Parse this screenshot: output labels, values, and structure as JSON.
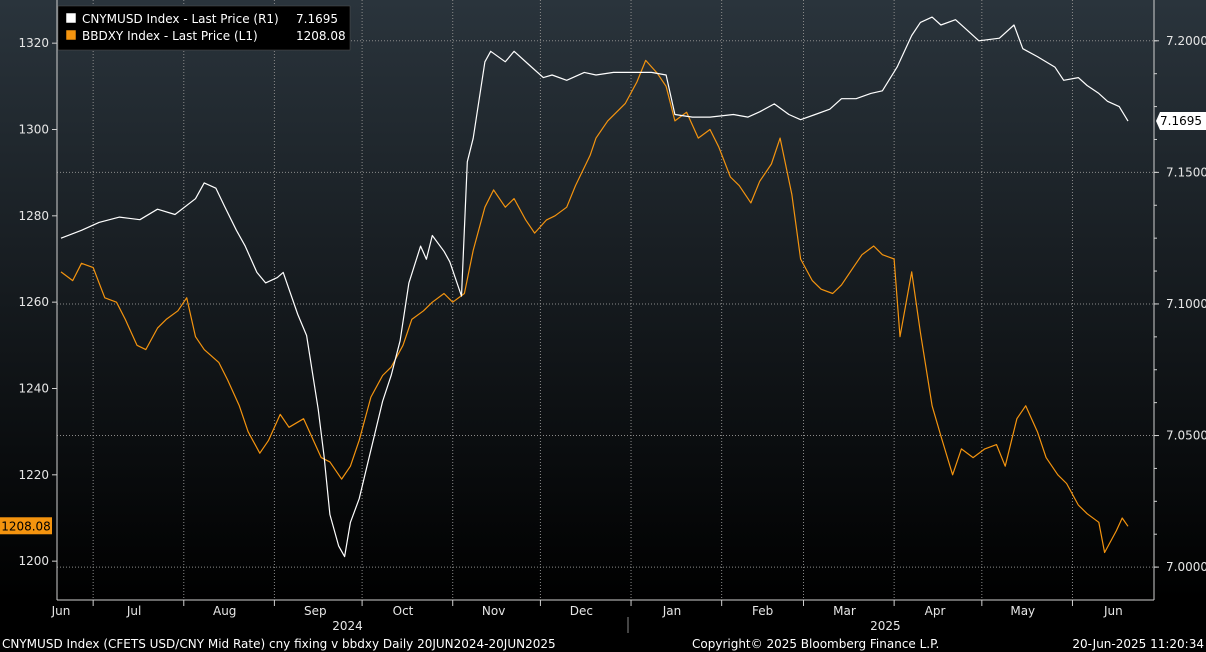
{
  "colors": {
    "background_top": "#2a343c",
    "background_bottom": "#000000",
    "grid": "#8a8a8a",
    "series_cny": "#ffffff",
    "series_bbdxy": "#f4940f"
  },
  "legend": {
    "cny_label": "CNYMUSD Index - Last Price (R1)",
    "cny_value": "7.1695",
    "bbdxy_label": "BBDXY Index - Last Price (L1)",
    "bbdxy_value": "1208.08"
  },
  "footer": {
    "left": "CNYMUSD Index (CFETS USD/CNY Mid Rate) cny fixing v bbdxy  Daily 20JUN2024-20JUN2025",
    "center": "Copyright© 2025 Bloomberg Finance L.P.",
    "right": "20-Jun-2025 11:20:34"
  },
  "chart_data": {
    "type": "line",
    "x_range": [
      "2024-06-20",
      "2025-06-20"
    ],
    "x_month_ticks": [
      {
        "label": "Jun",
        "date": "2024-06-20"
      },
      {
        "label": "Jul",
        "date": "2024-07-15"
      },
      {
        "label": "Aug",
        "date": "2024-08-15"
      },
      {
        "label": "Sep",
        "date": "2024-09-15"
      },
      {
        "label": "Oct",
        "date": "2024-10-15"
      },
      {
        "label": "Nov",
        "date": "2024-11-15"
      },
      {
        "label": "Dec",
        "date": "2024-12-15"
      },
      {
        "label": "Jan",
        "date": "2025-01-15"
      },
      {
        "label": "Feb",
        "date": "2025-02-15"
      },
      {
        "label": "Mar",
        "date": "2025-03-15"
      },
      {
        "label": "Apr",
        "date": "2025-04-15"
      },
      {
        "label": "May",
        "date": "2025-05-15"
      },
      {
        "label": "Jun",
        "date": "2025-06-15"
      }
    ],
    "x_month_boundaries": [
      "2024-07-01",
      "2024-08-01",
      "2024-09-01",
      "2024-10-01",
      "2024-11-01",
      "2024-12-01",
      "2025-01-01",
      "2025-02-01",
      "2025-03-01",
      "2025-04-01",
      "2025-05-01",
      "2025-06-01"
    ],
    "year_labels": [
      {
        "label": "2024",
        "date": "2024-09-26"
      },
      {
        "label": "2025",
        "date": "2025-03-29"
      }
    ],
    "y_left": {
      "min": 1191,
      "max": 1330,
      "ticks": [
        1200,
        1220,
        1240,
        1260,
        1280,
        1300,
        1320
      ]
    },
    "y_right": {
      "min": 6.9875,
      "max": 7.2155,
      "ticks": [
        "7.0000",
        "7.0500",
        "7.1000",
        "7.1500",
        "7.2000"
      ]
    },
    "grid": true,
    "legend_position": "top-left",
    "last_value_labels": {
      "left": "1208.08",
      "right": "7.1695"
    },
    "series": [
      {
        "name": "CNYMUSD Index - Last Price (R1)",
        "axis": "right",
        "color": "#ffffff",
        "points": [
          [
            "2024-06-20",
            7.125
          ],
          [
            "2024-06-27",
            7.128
          ],
          [
            "2024-07-03",
            7.131
          ],
          [
            "2024-07-10",
            7.133
          ],
          [
            "2024-07-17",
            7.132
          ],
          [
            "2024-07-23",
            7.136
          ],
          [
            "2024-07-29",
            7.134
          ],
          [
            "2024-08-05",
            7.14
          ],
          [
            "2024-08-08",
            7.146
          ],
          [
            "2024-08-12",
            7.144
          ],
          [
            "2024-08-15",
            7.137
          ],
          [
            "2024-08-19",
            7.128
          ],
          [
            "2024-08-22",
            7.122
          ],
          [
            "2024-08-26",
            7.112
          ],
          [
            "2024-08-29",
            7.108
          ],
          [
            "2024-09-02",
            7.11
          ],
          [
            "2024-09-04",
            7.112
          ],
          [
            "2024-09-09",
            7.096
          ],
          [
            "2024-09-12",
            7.088
          ],
          [
            "2024-09-16",
            7.06
          ],
          [
            "2024-09-18",
            7.042
          ],
          [
            "2024-09-20",
            7.02
          ],
          [
            "2024-09-23",
            7.008
          ],
          [
            "2024-09-25",
            7.004
          ],
          [
            "2024-09-27",
            7.017
          ],
          [
            "2024-09-30",
            7.026
          ],
          [
            "2024-10-08",
            7.063
          ],
          [
            "2024-10-11",
            7.073
          ],
          [
            "2024-10-14",
            7.086
          ],
          [
            "2024-10-17",
            7.108
          ],
          [
            "2024-10-21",
            7.122
          ],
          [
            "2024-10-23",
            7.117
          ],
          [
            "2024-10-25",
            7.126
          ],
          [
            "2024-10-29",
            7.12
          ],
          [
            "2024-10-31",
            7.116
          ],
          [
            "2024-11-04",
            7.103
          ],
          [
            "2024-11-06",
            7.154
          ],
          [
            "2024-11-08",
            7.163
          ],
          [
            "2024-11-12",
            7.192
          ],
          [
            "2024-11-14",
            7.196
          ],
          [
            "2024-11-19",
            7.192
          ],
          [
            "2024-11-22",
            7.196
          ],
          [
            "2024-11-27",
            7.191
          ],
          [
            "2024-12-02",
            7.186
          ],
          [
            "2024-12-05",
            7.187
          ],
          [
            "2024-12-10",
            7.185
          ],
          [
            "2024-12-16",
            7.188
          ],
          [
            "2024-12-20",
            7.187
          ],
          [
            "2024-12-26",
            7.188
          ],
          [
            "2025-01-02",
            7.188
          ],
          [
            "2025-01-08",
            7.188
          ],
          [
            "2025-01-13",
            7.187
          ],
          [
            "2025-01-16",
            7.172
          ],
          [
            "2025-01-22",
            7.171
          ],
          [
            "2025-01-28",
            7.171
          ],
          [
            "2025-02-05",
            7.172
          ],
          [
            "2025-02-10",
            7.171
          ],
          [
            "2025-02-14",
            7.173
          ],
          [
            "2025-02-19",
            7.176
          ],
          [
            "2025-02-24",
            7.172
          ],
          [
            "2025-02-28",
            7.17
          ],
          [
            "2025-03-05",
            7.172
          ],
          [
            "2025-03-10",
            7.174
          ],
          [
            "2025-03-14",
            7.178
          ],
          [
            "2025-03-19",
            7.178
          ],
          [
            "2025-03-24",
            7.18
          ],
          [
            "2025-03-28",
            7.181
          ],
          [
            "2025-04-02",
            7.19
          ],
          [
            "2025-04-07",
            7.202
          ],
          [
            "2025-04-10",
            7.207
          ],
          [
            "2025-04-14",
            7.209
          ],
          [
            "2025-04-17",
            7.206
          ],
          [
            "2025-04-22",
            7.208
          ],
          [
            "2025-04-25",
            7.205
          ],
          [
            "2025-04-30",
            7.2
          ],
          [
            "2025-05-07",
            7.201
          ],
          [
            "2025-05-12",
            7.206
          ],
          [
            "2025-05-15",
            7.197
          ],
          [
            "2025-05-20",
            7.194
          ],
          [
            "2025-05-26",
            7.19
          ],
          [
            "2025-05-29",
            7.185
          ],
          [
            "2025-06-03",
            7.186
          ],
          [
            "2025-06-06",
            7.183
          ],
          [
            "2025-06-10",
            7.18
          ],
          [
            "2025-06-13",
            7.177
          ],
          [
            "2025-06-17",
            7.175
          ],
          [
            "2025-06-20",
            7.1695
          ]
        ]
      },
      {
        "name": "BBDXY Index - Last Price (L1)",
        "axis": "left",
        "color": "#f4940f",
        "points": [
          [
            "2024-06-20",
            1267
          ],
          [
            "2024-06-24",
            1265
          ],
          [
            "2024-06-27",
            1269
          ],
          [
            "2024-07-01",
            1268
          ],
          [
            "2024-07-05",
            1261
          ],
          [
            "2024-07-09",
            1260
          ],
          [
            "2024-07-12",
            1256
          ],
          [
            "2024-07-16",
            1250
          ],
          [
            "2024-07-19",
            1249
          ],
          [
            "2024-07-23",
            1254
          ],
          [
            "2024-07-26",
            1256
          ],
          [
            "2024-07-30",
            1258
          ],
          [
            "2024-08-02",
            1261
          ],
          [
            "2024-08-05",
            1252
          ],
          [
            "2024-08-08",
            1249
          ],
          [
            "2024-08-13",
            1246
          ],
          [
            "2024-08-16",
            1242
          ],
          [
            "2024-08-20",
            1236
          ],
          [
            "2024-08-23",
            1230
          ],
          [
            "2024-08-27",
            1225
          ],
          [
            "2024-08-30",
            1228
          ],
          [
            "2024-09-03",
            1234
          ],
          [
            "2024-09-06",
            1231
          ],
          [
            "2024-09-11",
            1233
          ],
          [
            "2024-09-13",
            1230
          ],
          [
            "2024-09-17",
            1224
          ],
          [
            "2024-09-20",
            1223
          ],
          [
            "2024-09-24",
            1219
          ],
          [
            "2024-09-27",
            1222
          ],
          [
            "2024-09-30",
            1228
          ],
          [
            "2024-10-04",
            1238
          ],
          [
            "2024-10-08",
            1243
          ],
          [
            "2024-10-11",
            1245
          ],
          [
            "2024-10-15",
            1250
          ],
          [
            "2024-10-18",
            1256
          ],
          [
            "2024-10-22",
            1258
          ],
          [
            "2024-10-25",
            1260
          ],
          [
            "2024-10-29",
            1262
          ],
          [
            "2024-11-01",
            1260
          ],
          [
            "2024-11-05",
            1262
          ],
          [
            "2024-11-08",
            1272
          ],
          [
            "2024-11-12",
            1282
          ],
          [
            "2024-11-15",
            1286
          ],
          [
            "2024-11-19",
            1282
          ],
          [
            "2024-11-22",
            1284
          ],
          [
            "2024-11-26",
            1279
          ],
          [
            "2024-11-29",
            1276
          ],
          [
            "2024-12-03",
            1279
          ],
          [
            "2024-12-06",
            1280
          ],
          [
            "2024-12-10",
            1282
          ],
          [
            "2024-12-13",
            1287
          ],
          [
            "2024-12-18",
            1294
          ],
          [
            "2024-12-20",
            1298
          ],
          [
            "2024-12-24",
            1302
          ],
          [
            "2024-12-30",
            1306
          ],
          [
            "2025-01-03",
            1311
          ],
          [
            "2025-01-06",
            1316
          ],
          [
            "2025-01-10",
            1313
          ],
          [
            "2025-01-13",
            1310
          ],
          [
            "2025-01-16",
            1302
          ],
          [
            "2025-01-20",
            1304
          ],
          [
            "2025-01-24",
            1298
          ],
          [
            "2025-01-28",
            1300
          ],
          [
            "2025-01-31",
            1296
          ],
          [
            "2025-02-04",
            1289
          ],
          [
            "2025-02-07",
            1287
          ],
          [
            "2025-02-11",
            1283
          ],
          [
            "2025-02-14",
            1288
          ],
          [
            "2025-02-18",
            1292
          ],
          [
            "2025-02-21",
            1298
          ],
          [
            "2025-02-25",
            1285
          ],
          [
            "2025-02-28",
            1270
          ],
          [
            "2025-03-04",
            1265
          ],
          [
            "2025-03-07",
            1263
          ],
          [
            "2025-03-11",
            1262
          ],
          [
            "2025-03-14",
            1264
          ],
          [
            "2025-03-18",
            1268
          ],
          [
            "2025-03-21",
            1271
          ],
          [
            "2025-03-25",
            1273
          ],
          [
            "2025-03-28",
            1271
          ],
          [
            "2025-04-01",
            1270
          ],
          [
            "2025-04-03",
            1252
          ],
          [
            "2025-04-07",
            1267
          ],
          [
            "2025-04-10",
            1253
          ],
          [
            "2025-04-14",
            1236
          ],
          [
            "2025-04-17",
            1229
          ],
          [
            "2025-04-21",
            1220
          ],
          [
            "2025-04-24",
            1226
          ],
          [
            "2025-04-28",
            1224
          ],
          [
            "2025-05-02",
            1226
          ],
          [
            "2025-05-06",
            1227
          ],
          [
            "2025-05-09",
            1222
          ],
          [
            "2025-05-13",
            1233
          ],
          [
            "2025-05-16",
            1236
          ],
          [
            "2025-05-20",
            1230
          ],
          [
            "2025-05-23",
            1224
          ],
          [
            "2025-05-27",
            1220
          ],
          [
            "2025-05-30",
            1218
          ],
          [
            "2025-06-03",
            1213
          ],
          [
            "2025-06-06",
            1211
          ],
          [
            "2025-06-10",
            1209
          ],
          [
            "2025-06-12",
            1202
          ],
          [
            "2025-06-16",
            1207
          ],
          [
            "2025-06-18",
            1210
          ],
          [
            "2025-06-20",
            1208.08
          ]
        ]
      }
    ]
  }
}
